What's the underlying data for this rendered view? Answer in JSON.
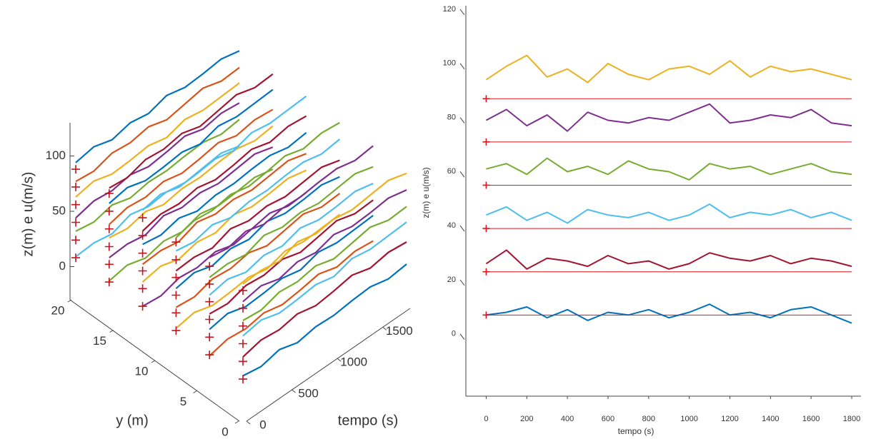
{
  "chart_data": [
    {
      "type": "line3d",
      "xlabel": "tempo (s)",
      "ylabel": "y (m)",
      "zlabel": "z(m)  e  u(m/s)",
      "xlim": [
        0,
        1800
      ],
      "ylim": [
        0,
        20
      ],
      "zlim": [
        -30,
        130
      ],
      "xticks": [
        0,
        500,
        1000,
        1500
      ],
      "yticks": [
        0,
        5,
        10,
        15,
        20
      ],
      "zticks": [
        0,
        50,
        100
      ],
      "colors": [
        "#0072BD",
        "#D95319",
        "#EDB120",
        "#7E2F8E",
        "#77AC30",
        "#4DBEEE",
        "#A2142F"
      ],
      "marker_color": "#c0141e",
      "x": [
        0,
        200,
        400,
        600,
        800,
        1000,
        1200,
        1400,
        1600,
        1800
      ],
      "series": [
        {
          "y": 20,
          "level": 88,
          "values": [
            94,
            97,
            92,
            96,
            93,
            98,
            94,
            95,
            97,
            93
          ]
        },
        {
          "y": 20,
          "level": 72,
          "values": [
            77,
            75,
            80,
            78,
            81,
            76,
            79,
            82,
            77,
            78
          ]
        },
        {
          "y": 20,
          "level": 56,
          "values": [
            63,
            66,
            61,
            62,
            64,
            60,
            65,
            62,
            63,
            64
          ]
        },
        {
          "y": 20,
          "level": 40,
          "values": [
            44,
            48,
            46,
            49,
            45,
            47,
            50,
            45,
            48,
            46
          ]
        },
        {
          "y": 20,
          "level": 24,
          "values": [
            32,
            29,
            33,
            28,
            31,
            30,
            32,
            33,
            29,
            31
          ]
        },
        {
          "y": 20,
          "level": 8,
          "values": [
            9,
            10,
            7,
            13,
            9,
            11,
            8,
            10,
            12,
            7
          ]
        },
        {
          "y": 16,
          "level": 88,
          "values": [
            93,
            91,
            96,
            94,
            97,
            92,
            95,
            98,
            93,
            94
          ]
        },
        {
          "y": 16,
          "level": 72,
          "values": [
            79,
            82,
            77,
            78,
            80,
            76,
            81,
            78,
            79,
            80
          ]
        },
        {
          "y": 16,
          "level": 56,
          "values": [
            60,
            64,
            62,
            65,
            61,
            63,
            66,
            61,
            64,
            62
          ]
        },
        {
          "y": 16,
          "level": 40,
          "values": [
            48,
            45,
            49,
            44,
            47,
            46,
            48,
            49,
            45,
            47
          ]
        },
        {
          "y": 16,
          "level": 24,
          "values": [
            30,
            31,
            28,
            34,
            30,
            32,
            29,
            31,
            33,
            28
          ]
        },
        {
          "y": 16,
          "level": 8,
          "values": [
            9,
            12,
            7,
            11,
            8,
            13,
            9,
            10,
            12,
            8
          ]
        },
        {
          "y": 12,
          "level": 88,
          "values": [
            95,
            98,
            93,
            94,
            96,
            92,
            97,
            94,
            95,
            96
          ]
        },
        {
          "y": 12,
          "level": 72,
          "values": [
            76,
            80,
            78,
            81,
            77,
            79,
            82,
            77,
            80,
            78
          ]
        },
        {
          "y": 12,
          "level": 56,
          "values": [
            64,
            61,
            65,
            60,
            63,
            62,
            64,
            65,
            61,
            63
          ]
        },
        {
          "y": 12,
          "level": 40,
          "values": [
            46,
            47,
            44,
            50,
            46,
            48,
            45,
            47,
            49,
            44
          ]
        },
        {
          "y": 12,
          "level": 24,
          "values": [
            30,
            33,
            28,
            32,
            29,
            34,
            30,
            31,
            33,
            29
          ]
        },
        {
          "y": 12,
          "level": 8,
          "values": [
            8,
            6,
            11,
            9,
            12,
            7,
            10,
            13,
            8,
            9
          ]
        },
        {
          "y": 8,
          "level": 88,
          "values": [
            92,
            96,
            94,
            97,
            93,
            95,
            98,
            93,
            96,
            94
          ]
        },
        {
          "y": 8,
          "level": 72,
          "values": [
            80,
            77,
            81,
            76,
            79,
            78,
            80,
            81,
            77,
            79
          ]
        },
        {
          "y": 8,
          "level": 56,
          "values": [
            62,
            63,
            60,
            66,
            62,
            64,
            61,
            63,
            65,
            60
          ]
        },
        {
          "y": 8,
          "level": 40,
          "values": [
            46,
            49,
            44,
            48,
            45,
            50,
            46,
            47,
            49,
            45
          ]
        },
        {
          "y": 8,
          "level": 24,
          "values": [
            29,
            27,
            32,
            30,
            33,
            28,
            31,
            34,
            29,
            30
          ]
        },
        {
          "y": 8,
          "level": 8,
          "values": [
            10,
            13,
            8,
            9,
            11,
            7,
            12,
            9,
            10,
            11
          ]
        },
        {
          "y": 4,
          "level": 88,
          "values": [
            96,
            93,
            97,
            92,
            95,
            94,
            96,
            97,
            93,
            95
          ]
        },
        {
          "y": 4,
          "level": 72,
          "values": [
            78,
            79,
            76,
            82,
            78,
            80,
            77,
            79,
            81,
            76
          ]
        },
        {
          "y": 4,
          "level": 56,
          "values": [
            62,
            65,
            60,
            64,
            61,
            66,
            62,
            63,
            65,
            61
          ]
        },
        {
          "y": 4,
          "level": 40,
          "values": [
            45,
            43,
            48,
            46,
            49,
            44,
            47,
            50,
            45,
            46
          ]
        },
        {
          "y": 4,
          "level": 24,
          "values": [
            31,
            34,
            29,
            30,
            32,
            28,
            33,
            30,
            31,
            32
          ]
        },
        {
          "y": 4,
          "level": 8,
          "values": [
            7,
            11,
            9,
            12,
            8,
            10,
            13,
            8,
            11,
            9
          ]
        },
        {
          "y": 0,
          "level": 88,
          "values": [
            94,
            95,
            92,
            98,
            94,
            96,
            93,
            95,
            97,
            92
          ]
        },
        {
          "y": 0,
          "level": 72,
          "values": [
            78,
            81,
            76,
            80,
            77,
            82,
            78,
            79,
            81,
            77
          ]
        },
        {
          "y": 0,
          "level": 56,
          "values": [
            61,
            59,
            64,
            62,
            65,
            60,
            63,
            66,
            61,
            62
          ]
        },
        {
          "y": 0,
          "level": 40,
          "values": [
            47,
            50,
            45,
            46,
            48,
            44,
            49,
            46,
            47,
            48
          ]
        },
        {
          "y": 0,
          "level": 24,
          "values": [
            28,
            32,
            30,
            33,
            29,
            31,
            34,
            29,
            32,
            30
          ]
        },
        {
          "y": 0,
          "level": 8,
          "values": [
            11,
            8,
            12,
            7,
            10,
            9,
            11,
            12,
            8,
            10
          ]
        }
      ]
    },
    {
      "type": "line",
      "xlabel": "tempo (s)",
      "ylabel": "z(m)  e  u(m/s)",
      "xlim": [
        -100,
        1800
      ],
      "ylim": [
        -22,
        120
      ],
      "xticks": [
        0,
        200,
        400,
        600,
        800,
        1000,
        1200,
        1400,
        1600,
        1800
      ],
      "yticks": [
        0,
        20,
        40,
        60,
        80,
        100,
        120
      ],
      "x": [
        0,
        100,
        200,
        300,
        400,
        500,
        600,
        700,
        800,
        900,
        1000,
        1100,
        1200,
        1300,
        1400,
        1500,
        1600,
        1700,
        1800
      ],
      "ref_levels": [
        88,
        72,
        56,
        40,
        24,
        8
      ],
      "ref_color": "#e0141e",
      "series": [
        {
          "color": "#EDB120",
          "values": [
            95,
            100,
            104,
            96,
            99,
            94,
            101,
            97,
            95,
            99,
            100,
            97,
            102,
            96,
            100,
            98,
            99,
            97,
            95
          ]
        },
        {
          "color": "#7E2F8E",
          "values": [
            80,
            84,
            78,
            82,
            76,
            83,
            80,
            79,
            81,
            80,
            83,
            86,
            79,
            80,
            82,
            81,
            84,
            79,
            78
          ]
        },
        {
          "color": "#77AC30",
          "values": [
            62,
            64,
            60,
            66,
            61,
            63,
            60,
            65,
            62,
            61,
            58,
            64,
            62,
            63,
            60,
            62,
            64,
            61,
            60
          ]
        },
        {
          "color": "#4DBEEE",
          "values": [
            45,
            48,
            43,
            46,
            42,
            47,
            45,
            44,
            46,
            43,
            45,
            49,
            44,
            46,
            45,
            47,
            44,
            46,
            43
          ]
        },
        {
          "color": "#A2142F",
          "values": [
            27,
            32,
            25,
            29,
            28,
            26,
            30,
            27,
            28,
            25,
            27,
            31,
            29,
            28,
            30,
            27,
            29,
            28,
            26
          ]
        },
        {
          "color": "#0072BD",
          "values": [
            8,
            9,
            11,
            7,
            10,
            6,
            9,
            8,
            10,
            7,
            9,
            12,
            8,
            9,
            7,
            10,
            11,
            8,
            5
          ]
        }
      ]
    }
  ]
}
